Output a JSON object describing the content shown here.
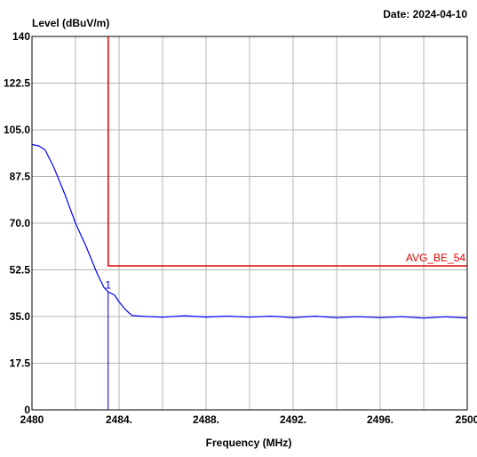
{
  "chart_data": {
    "type": "line",
    "date_label": "Date: 2024-04-10",
    "ylabel": "Level (dBuV/m)",
    "xlabel": "Frequency (MHz)",
    "xlim": [
      2480,
      2500
    ],
    "ylim": [
      0,
      140
    ],
    "grid": true,
    "x_ticks": [
      {
        "v": 2480,
        "label": "2480"
      },
      {
        "v": 2484,
        "label": "2484."
      },
      {
        "v": 2488,
        "label": "2488."
      },
      {
        "v": 2492,
        "label": "2492."
      },
      {
        "v": 2496,
        "label": "2496."
      },
      {
        "v": 2500,
        "label": "2500"
      }
    ],
    "y_ticks": [
      {
        "v": 0,
        "label": "0"
      },
      {
        "v": 17.5,
        "label": "17.5"
      },
      {
        "v": 35,
        "label": "35.0"
      },
      {
        "v": 52.5,
        "label": "52.5"
      },
      {
        "v": 70,
        "label": "70.0"
      },
      {
        "v": 87.5,
        "label": "87.5"
      },
      {
        "v": 105,
        "label": "105.0"
      },
      {
        "v": 122.5,
        "label": "122.5"
      },
      {
        "v": 140,
        "label": "140"
      }
    ],
    "limit_line": {
      "label": "AVG_BE_54",
      "color": "#e00000",
      "points": [
        [
          2483.5,
          140
        ],
        [
          2483.5,
          54
        ],
        [
          2500,
          54
        ]
      ]
    },
    "marker": {
      "label": "1",
      "x": 2483.5,
      "y": 44.2,
      "color": "#0000cc"
    },
    "series": [
      {
        "color": "#0000ff",
        "x": [
          2480,
          2480.3,
          2480.6,
          2481,
          2481.5,
          2482,
          2482.5,
          2483,
          2483.3,
          2483.5,
          2483.8,
          2484,
          2484.3,
          2484.6,
          2485,
          2486,
          2487,
          2488,
          2489,
          2490,
          2491,
          2492,
          2493,
          2494,
          2495,
          2496,
          2497,
          2498,
          2499,
          2500
        ],
        "values": [
          99.5,
          99.0,
          97.5,
          91.0,
          81.0,
          70.0,
          61.0,
          51.0,
          46.0,
          44.2,
          43.0,
          40.5,
          37.5,
          35.3,
          35.0,
          34.9,
          35.1,
          35.0,
          34.9,
          35.0,
          34.9,
          34.8,
          34.9,
          34.8,
          34.7,
          34.8,
          34.7,
          34.6,
          34.7,
          34.6
        ]
      }
    ]
  }
}
